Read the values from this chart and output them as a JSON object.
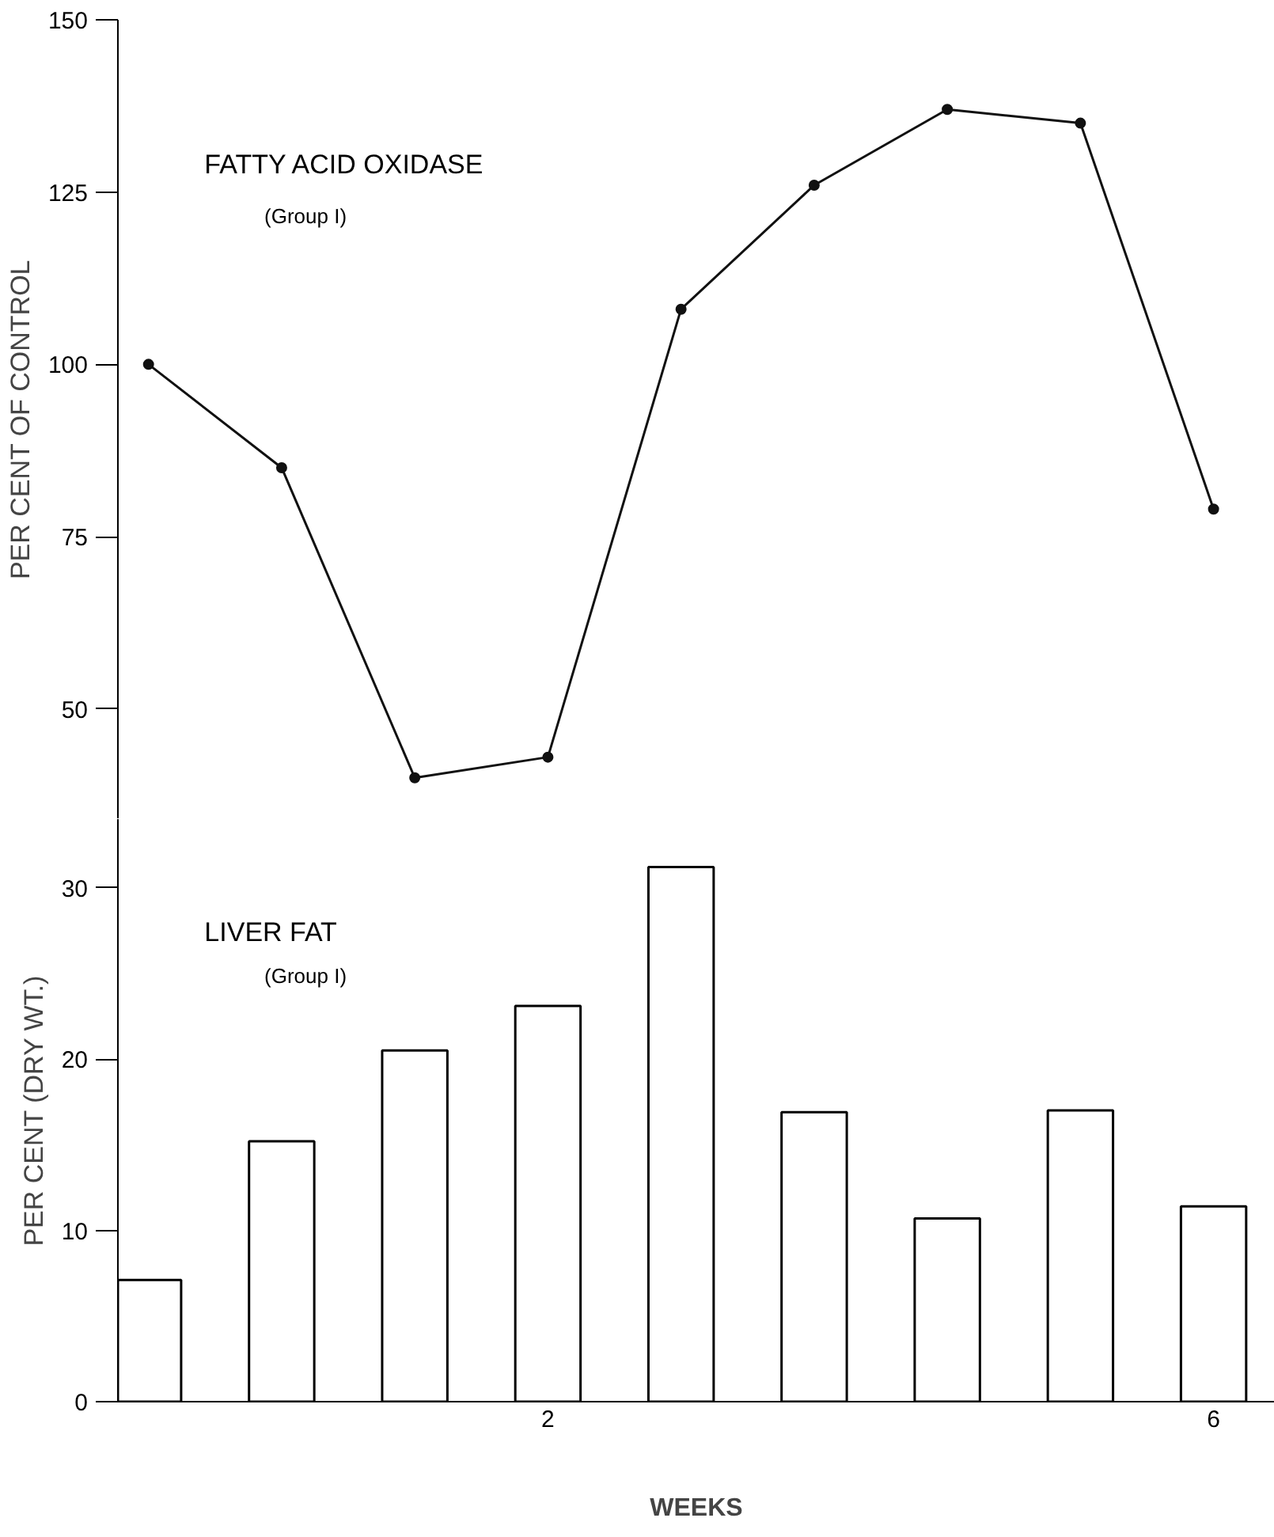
{
  "chart_data": [
    {
      "type": "line",
      "ylabel": "PER CENT OF CONTROL",
      "annotations": [
        "FATTY ACID OXIDASE",
        "(Group I)"
      ],
      "categories": [
        null,
        null,
        null,
        null,
        null,
        null,
        null,
        null,
        null
      ],
      "values": [
        100,
        85,
        40,
        43,
        108,
        126,
        137,
        135,
        79
      ],
      "color": "#111111",
      "marker": "circle",
      "line_style": "solid",
      "ylim": [
        34,
        150
      ],
      "yticks": [
        50,
        75,
        100,
        125,
        150
      ],
      "tick_labels": "y",
      "grid": false
    },
    {
      "type": "bar",
      "ylabel": "PER CENT (DRY WT.)",
      "xlabel": "WEEKS",
      "annotations": [
        "LIVER FAT",
        "(Group I)"
      ],
      "categories": [
        null,
        null,
        null,
        "2",
        null,
        null,
        null,
        null,
        "6"
      ],
      "values": [
        7.1,
        15.2,
        20.5,
        23.1,
        31.2,
        16.9,
        10.7,
        17.0,
        11.4
      ],
      "color": "#ffffff",
      "ylim": [
        0,
        34
      ],
      "yticks": [
        0,
        10,
        20,
        30
      ],
      "grid": false
    }
  ]
}
